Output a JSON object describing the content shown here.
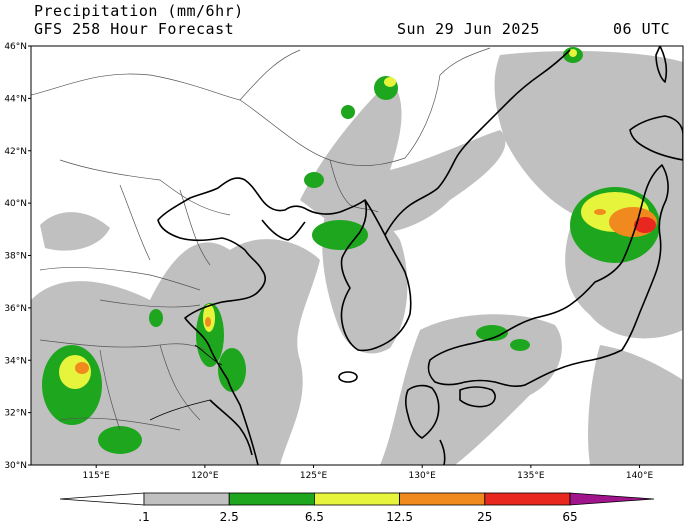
{
  "header": {
    "title": "Precipitation (mm/6hr)",
    "subtitle": "GFS 258 Hour Forecast",
    "valid_date": "Sun 29 Jun 2025",
    "valid_time": "06 UTC"
  },
  "map": {
    "region": "East Asia (China, Korea, Japan)",
    "lon_range": [
      112,
      142
    ],
    "lat_range": [
      30,
      46
    ],
    "lon_ticks": [
      "115°E",
      "120°E",
      "125°E",
      "130°E",
      "135°E",
      "140°E"
    ],
    "lat_ticks": [
      "30°N",
      "32°N",
      "34°N",
      "36°N",
      "38°N",
      "40°N",
      "42°N",
      "44°N",
      "46°N"
    ],
    "colors": {
      "land": "#ffffff",
      "coast": "#000000",
      "border": "#555555"
    }
  },
  "legend": {
    "labels": [
      ".1",
      "2.5",
      "6.5",
      "12.5",
      "25",
      "65"
    ],
    "bins": [
      {
        "from": "0.1",
        "to": "2.5",
        "color": "#c0c0c0"
      },
      {
        "from": "2.5",
        "to": "6.5",
        "color": "#1ea61e"
      },
      {
        "from": "6.5",
        "to": "12.5",
        "color": "#e6f53c"
      },
      {
        "from": "12.5",
        "to": "25",
        "color": "#f08a1e"
      },
      {
        "from": "25",
        "to": "65",
        "color": "#e8281e"
      },
      {
        "from": "65",
        "to": "",
        "color": "#a0148c"
      }
    ]
  }
}
